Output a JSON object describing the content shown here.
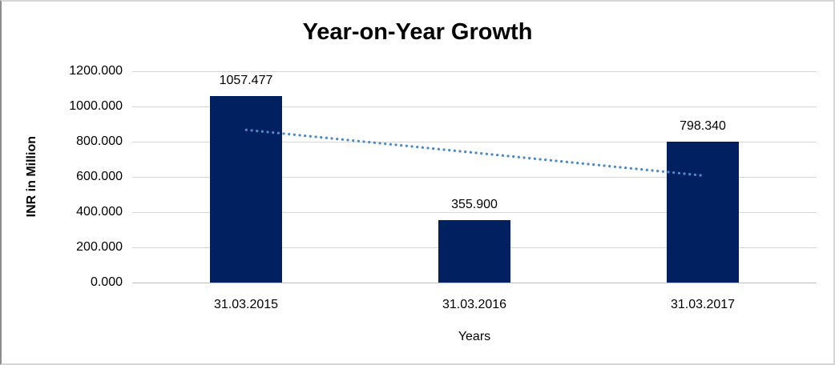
{
  "chart_data": {
    "type": "bar",
    "title": "Year-on-Year Growth",
    "xlabel": "Years",
    "ylabel": "INR in Million",
    "categories": [
      "31.03.2015",
      "31.03.2016",
      "31.03.2017"
    ],
    "values": [
      1057.477,
      355.9,
      798.34
    ],
    "data_labels": [
      "1057.477",
      "355.900",
      "798.340"
    ],
    "ylim": [
      0,
      1200
    ],
    "ytick_step": 200,
    "ytick_labels": [
      "0.000",
      "200.000",
      "400.000",
      "600.000",
      "800.000",
      "1000.000",
      "1200.000"
    ],
    "grid": true,
    "legend": "none",
    "trendline": {
      "type": "linear",
      "style": "dotted",
      "start_value": 867,
      "end_value": 608
    },
    "colors": {
      "bar": "#002060",
      "trendline": "#4e8ac8",
      "gridline": "#d6d6d6",
      "axis_line": "#bfbfbf",
      "text": "#000000"
    }
  }
}
